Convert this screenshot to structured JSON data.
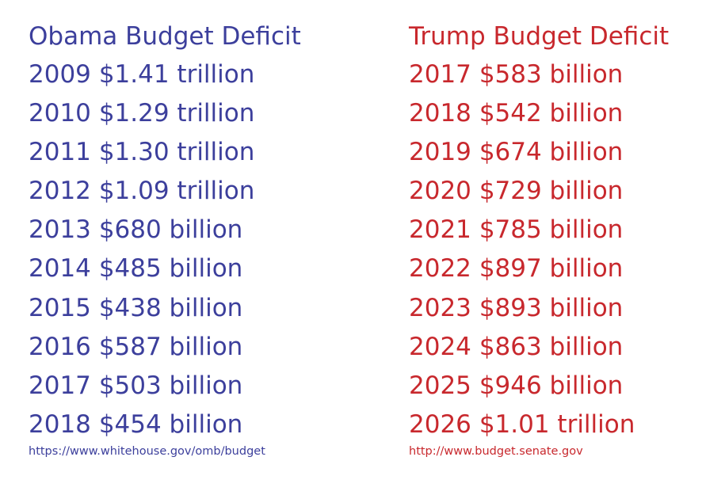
{
  "colors": {
    "obama": "#3c3f9c",
    "trump": "#c8282d"
  },
  "obama": {
    "heading": "Obama Budget Deficit",
    "rows": [
      {
        "year": "2009",
        "amount": "$1.41 trillion"
      },
      {
        "year": "2010",
        "amount": "$1.29 trillion"
      },
      {
        "year": "2011",
        "amount": "$1.30 trillion"
      },
      {
        "year": "2012",
        "amount": "$1.09 trillion"
      },
      {
        "year": "2013",
        "amount": "$680 billion"
      },
      {
        "year": "2014",
        "amount": "$485 billion"
      },
      {
        "year": "2015",
        "amount": "$438 billion"
      },
      {
        "year": "2016",
        "amount": "$587 billion"
      },
      {
        "year": "2017",
        "amount": "$503 billion"
      },
      {
        "year": "2018",
        "amount": "$454 billion"
      }
    ],
    "source": "https://www.whitehouse.gov/omb/budget"
  },
  "trump": {
    "heading": "Trump Budget Deficit",
    "rows": [
      {
        "year": "2017",
        "amount": "$583 billion"
      },
      {
        "year": "2018",
        "amount": "$542 billion"
      },
      {
        "year": "2019",
        "amount": "$674 billion"
      },
      {
        "year": "2020",
        "amount": "$729 billion"
      },
      {
        "year": "2021",
        "amount": "$785 billion"
      },
      {
        "year": "2022",
        "amount": "$897 billion"
      },
      {
        "year": "2023",
        "amount": "$893 billion"
      },
      {
        "year": "2024",
        "amount": "$863 billion"
      },
      {
        "year": "2025",
        "amount": "$946 billion"
      },
      {
        "year": "2026",
        "amount": "$1.01 trillion"
      }
    ],
    "source": "http://www.budget.senate.gov"
  }
}
